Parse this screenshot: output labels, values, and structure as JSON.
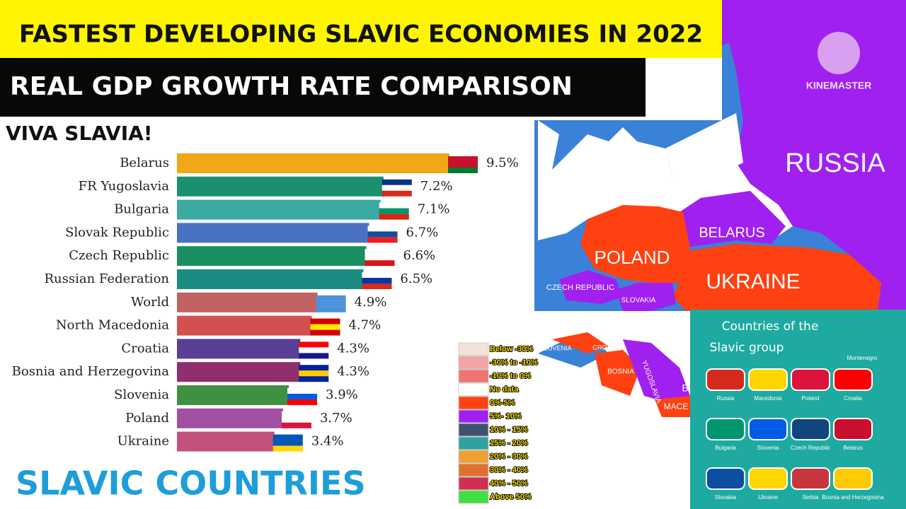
{
  "header": {
    "title": "FASTEST DEVELOPING SLAVIC ECONOMIES IN 2022",
    "subtitle": "REAL GDP GROWTH RATE COMPARISON",
    "tagline": "VIVA SLAVIA!",
    "footer": "SLAVIC COUNTRIES"
  },
  "chart_data": {
    "type": "bar",
    "orientation": "horizontal",
    "categories": [
      "Belarus",
      "FR Yugoslavia",
      "Bulgaria",
      "Slovak Republic",
      "Czech Republic",
      "Russian Federation",
      "World",
      "North Macedonia",
      "Croatia",
      "Bosnia and Herzegovina",
      "Slovenia",
      "Poland",
      "Ukraine"
    ],
    "values": [
      9.5,
      7.2,
      7.1,
      6.7,
      6.6,
      6.5,
      4.9,
      4.7,
      4.3,
      4.3,
      3.9,
      3.7,
      3.4
    ],
    "value_labels": [
      "9.5%",
      "7.2%",
      "7.1%",
      "6.7%",
      "6.6%",
      "6.5%",
      "4.9%",
      "4.7%",
      "4.3%",
      "4.3%",
      "3.9%",
      "3.7%",
      "3.4%"
    ],
    "colors": [
      "#f0a818",
      "#1a9070",
      "#3aaaa2",
      "#4a72c2",
      "#1a9062",
      "#1a8c82",
      "#c26262",
      "#d45050",
      "#5a4094",
      "#902f6e",
      "#409042",
      "#a250a2",
      "#c4507e"
    ]
  },
  "map": {
    "watermark": "KINEMASTER",
    "russia": "RUSSIA",
    "belarus": "BELARUS",
    "poland": "POLAND",
    "ukraine": "UKRAINE",
    "czech": "CZECH REPUBLIC",
    "slovakia": "SLOVAKIA",
    "slovenia": "SLOVENIA",
    "croatia": "CROATIA",
    "bosnia": "BOSNIA",
    "yugoslavia": "YUGOSLAVIA",
    "macedonia": "MACE",
    "bulgaria": "B"
  },
  "legend": {
    "items": [
      {
        "label": "Below -30%",
        "color": "#f2e2da"
      },
      {
        "label": "-30% to -10%",
        "color": "#f2a4a4"
      },
      {
        "label": "-10% to 0%",
        "color": "#f07272"
      },
      {
        "label": "No data",
        "color": "#ffffff"
      },
      {
        "label": "0%-5%",
        "color": "#ff4010"
      },
      {
        "label": "5%- 10%",
        "color": "#a020f0"
      },
      {
        "label": "10% - 15%",
        "color": "#405070"
      },
      {
        "label": "15% - 20%",
        "color": "#30a0a0"
      },
      {
        "label": "20% - 30%",
        "color": "#f0a030"
      },
      {
        "label": "30% - 40%",
        "color": "#e07030"
      },
      {
        "label": "40% - 50%",
        "color": "#d03050"
      },
      {
        "label": "Above 50%",
        "color": "#40e040"
      }
    ]
  },
  "inset": {
    "title": "Countries of the",
    "title2": "Slavic group",
    "countries": [
      "Russia",
      "Macedonia",
      "Poland",
      "Croatia",
      "Bulgaria",
      "Slovenia",
      "Czech Republic",
      "Belarus",
      "Slovakia",
      "Ukraine",
      "Serbia",
      "Bosnia and Herzegovina"
    ],
    "extra": "Montenegro"
  }
}
